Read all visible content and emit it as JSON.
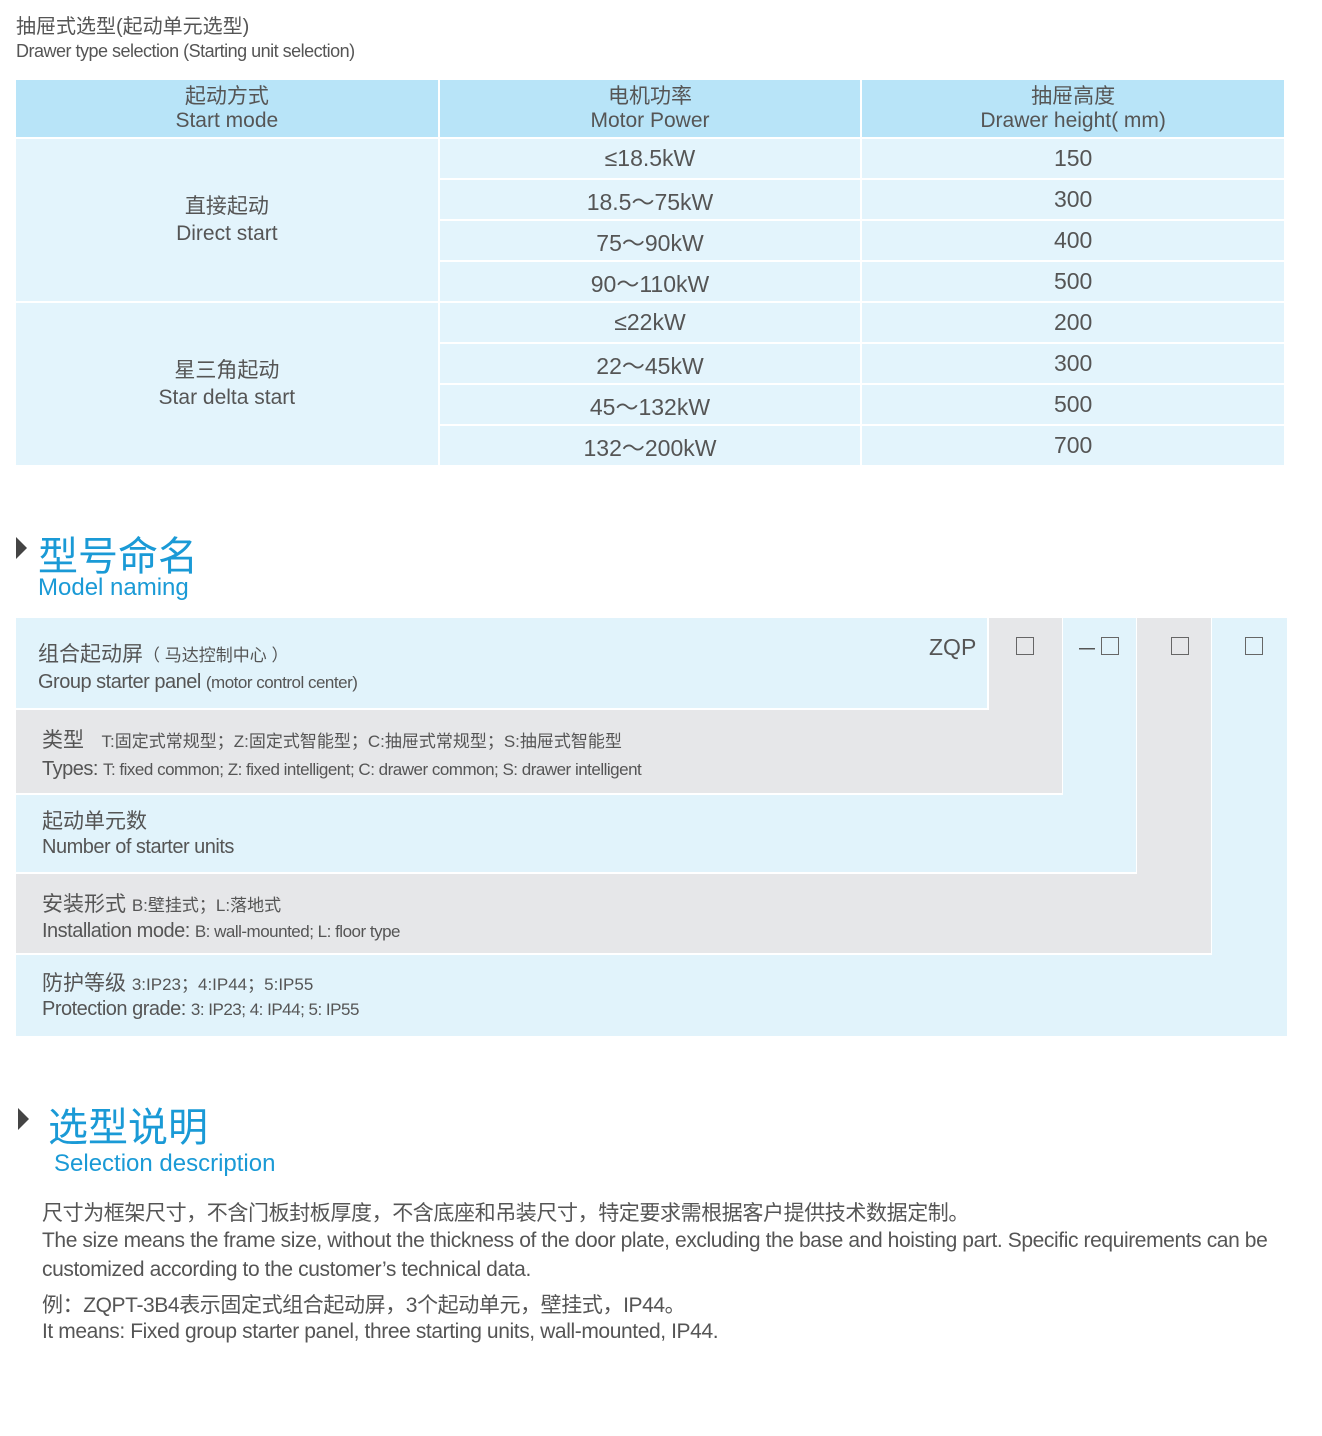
{
  "header": {
    "title_cn": "抽屉式选型(起动单元选型)",
    "title_en": "Drawer type selection (Starting unit selection)"
  },
  "table": {
    "columns": [
      {
        "cn": "起动方式",
        "en": "Start mode"
      },
      {
        "cn": "电机功率",
        "en": "Motor Power"
      },
      {
        "cn": "抽屉高度",
        "en": "Drawer height( mm)"
      }
    ],
    "groups": [
      {
        "cn": "直接起动",
        "en": "Direct start",
        "rows": [
          [
            "≤18.5kW",
            "150"
          ],
          [
            "18.5～75kW",
            "300"
          ],
          [
            "75～90kW",
            "400"
          ],
          [
            "90～110kW",
            "500"
          ]
        ]
      },
      {
        "cn": "星三角起动",
        "en": "Star delta start",
        "rows": [
          [
            "≤22kW",
            "200"
          ],
          [
            "22～45kW",
            "300"
          ],
          [
            "45～132kW",
            "500"
          ],
          [
            "132～200kW",
            "700"
          ]
        ]
      }
    ]
  },
  "model": {
    "title_cn": "型号命名",
    "title_en": "Model naming",
    "prefix": "ZQP",
    "dash": "－",
    "rows": [
      {
        "cn": "组合起动屏",
        "cn_note": "（ 马达控制中心 ）",
        "en": "Group starter panel",
        "en_note": "(motor control center)"
      },
      {
        "cn": "类型",
        "cn_note": "T:固定式常规型；Z:固定式智能型；C:抽屉式常规型；S:抽屉式智能型",
        "en": "Types:",
        "en_note": "T: fixed common; Z: fixed intelligent; C: drawer common; S: drawer intelligent"
      },
      {
        "cn": "起动单元数",
        "cn_note": "",
        "en": "Number of starter units",
        "en_note": ""
      },
      {
        "cn": "安装形式",
        "cn_note": "B:壁挂式；L:落地式",
        "en": "Installation mode:",
        "en_note": "B: wall-mounted; L: floor type"
      },
      {
        "cn": "防护等级",
        "cn_note": "3:IP23；4:IP44；5:IP55",
        "en": "Protection grade:",
        "en_note": "3: IP23; 4: IP44; 5: IP55"
      }
    ]
  },
  "selection": {
    "title_cn": "选型说明",
    "title_en": "Selection description",
    "lines": [
      "尺寸为框架尺寸，不含门板封板厚度，不含底座和吊装尺寸，特定要求需根据客户提供技术数据定制。",
      "The size means the frame size, without the thickness of the door plate, excluding the base and hoisting part. Specific requirements can be",
      "customized according to the customer’s technical data.",
      "例：ZQPT-3B4表示固定式组合起动屏，3个起动单元，壁挂式，IP44。",
      "It means: Fixed group starter panel, three starting units, wall-mounted, IP44."
    ]
  },
  "colors": {
    "accent": "#1a9ad6",
    "header_bg": "#b8e4f8",
    "cell_bg": "#e3f4fc",
    "gray_bg": "#e6e7e9"
  }
}
